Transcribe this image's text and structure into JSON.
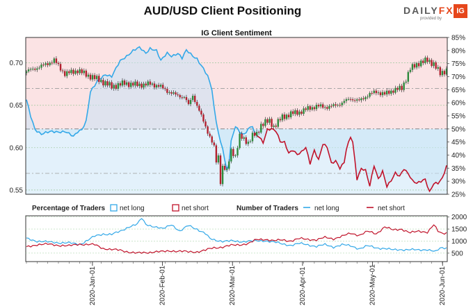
{
  "title": "AUD/USD Client Positioning",
  "logo": {
    "brand_a": "DAILY",
    "brand_b": "FX",
    "tagline": "provided by",
    "badge": "IG"
  },
  "chart_data": [
    {
      "type": "line",
      "title": "IG Client Sentiment",
      "subtype": "candlestick + net long/short percentage",
      "left_axis": {
        "ticks": [
          "0.70",
          "0.65",
          "0.60",
          "0.55"
        ],
        "values": [
          0.7,
          0.65,
          0.6,
          0.55
        ],
        "range": [
          0.545,
          0.73
        ]
      },
      "right_axis": {
        "ticks": [
          "85%",
          "80%",
          "75%",
          "70%",
          "65%",
          "60%",
          "55%",
          "50%",
          "45%",
          "40%",
          "35%",
          "30%",
          "25%"
        ],
        "range": [
          25,
          85
        ]
      },
      "reference_lines": [
        {
          "value": 50,
          "unit": "%"
        },
        {
          "value": 65.5,
          "unit": "%"
        },
        {
          "value": 33,
          "unit": "%"
        }
      ],
      "series": [
        {
          "name": "net long",
          "color": "#33a8e8",
          "anchors": [
            [
              0,
              61
            ],
            [
              2,
              55
            ],
            [
              4,
              50
            ],
            [
              7,
              48
            ],
            [
              12,
              49
            ],
            [
              18,
              49
            ],
            [
              20,
              48
            ],
            [
              22,
              47
            ],
            [
              24,
              49
            ],
            [
              26,
              50
            ],
            [
              28,
              53
            ],
            [
              30,
              64
            ],
            [
              34,
              69
            ],
            [
              37,
              71
            ],
            [
              40,
              70
            ],
            [
              42,
              73
            ],
            [
              44,
              76
            ],
            [
              47,
              78
            ],
            [
              50,
              80
            ],
            [
              53,
              81
            ],
            [
              56,
              79
            ],
            [
              58,
              81
            ],
            [
              61,
              80
            ],
            [
              63,
              76
            ],
            [
              66,
              79
            ],
            [
              68,
              78
            ],
            [
              71,
              79
            ],
            [
              73,
              77
            ],
            [
              75,
              80
            ],
            [
              78,
              78
            ],
            [
              80,
              77
            ],
            [
              83,
              73
            ],
            [
              85,
              70
            ],
            [
              87,
              65
            ],
            [
              88,
              58
            ],
            [
              89,
              53
            ],
            [
              90,
              49
            ],
            [
              91,
              45
            ],
            [
              92,
              43
            ],
            [
              93,
              38
            ],
            [
              94,
              34
            ],
            [
              95,
              37
            ],
            [
              96,
              45
            ],
            [
              98,
              51
            ],
            [
              100,
              49
            ],
            [
              102,
              48
            ],
            [
              104,
              50
            ],
            [
              106,
              51
            ],
            [
              107,
              48
            ]
          ]
        },
        {
          "name": "net short",
          "color": "#c0122a",
          "anchors": [
            [
              107,
              52
            ],
            [
              109,
              47
            ],
            [
              111,
              45
            ],
            [
              113,
              50
            ],
            [
              115,
              50
            ],
            [
              117,
              49
            ],
            [
              119,
              45
            ],
            [
              121,
              45
            ],
            [
              123,
              41
            ],
            [
              125,
              42
            ],
            [
              127,
              40
            ],
            [
              129,
              41
            ],
            [
              131,
              43
            ],
            [
              133,
              37
            ],
            [
              135,
              42
            ],
            [
              137,
              38
            ],
            [
              139,
              44
            ],
            [
              141,
              43
            ],
            [
              143,
              37
            ],
            [
              145,
              38
            ],
            [
              147,
              35
            ],
            [
              149,
              37
            ],
            [
              150,
              42
            ],
            [
              152,
              47
            ],
            [
              153,
              45
            ],
            [
              154,
              38
            ],
            [
              155,
              31
            ],
            [
              157,
              35
            ],
            [
              159,
              34
            ],
            [
              161,
              28
            ],
            [
              163,
              36
            ],
            [
              165,
              31
            ],
            [
              167,
              34
            ],
            [
              169,
              28
            ],
            [
              171,
              30
            ],
            [
              173,
              33
            ],
            [
              175,
              32
            ],
            [
              177,
              35
            ],
            [
              179,
              33
            ],
            [
              181,
              30
            ],
            [
              183,
              29
            ],
            [
              185,
              30
            ],
            [
              187,
              31
            ],
            [
              189,
              26
            ],
            [
              191,
              29
            ],
            [
              193,
              29
            ],
            [
              195,
              31
            ],
            [
              197,
              36
            ]
          ]
        }
      ],
      "price_path": [
        [
          0,
          0.69
        ],
        [
          8,
          0.697
        ],
        [
          13,
          0.703
        ],
        [
          18,
          0.687
        ],
        [
          24,
          0.691
        ],
        [
          30,
          0.684
        ],
        [
          34,
          0.68
        ],
        [
          40,
          0.672
        ],
        [
          46,
          0.676
        ],
        [
          52,
          0.674
        ],
        [
          58,
          0.675
        ],
        [
          62,
          0.673
        ],
        [
          66,
          0.667
        ],
        [
          70,
          0.662
        ],
        [
          74,
          0.66
        ],
        [
          76,
          0.65
        ],
        [
          78,
          0.662
        ],
        [
          82,
          0.637
        ],
        [
          84,
          0.625
        ],
        [
          86,
          0.613
        ],
        [
          88,
          0.6
        ],
        [
          89,
          0.583
        ],
        [
          90,
          0.59
        ],
        [
          91,
          0.56
        ],
        [
          92,
          0.578
        ],
        [
          94,
          0.572
        ],
        [
          96,
          0.597
        ],
        [
          98,
          0.59
        ],
        [
          100,
          0.613
        ],
        [
          102,
          0.61
        ],
        [
          104,
          0.606
        ],
        [
          106,
          0.614
        ],
        [
          108,
          0.616
        ],
        [
          110,
          0.627
        ],
        [
          112,
          0.63
        ],
        [
          114,
          0.631
        ],
        [
          116,
          0.625
        ],
        [
          120,
          0.636
        ],
        [
          124,
          0.64
        ],
        [
          128,
          0.642
        ],
        [
          132,
          0.646
        ],
        [
          136,
          0.649
        ],
        [
          140,
          0.648
        ],
        [
          144,
          0.649
        ],
        [
          148,
          0.653
        ],
        [
          152,
          0.658
        ],
        [
          156,
          0.655
        ],
        [
          160,
          0.662
        ],
        [
          164,
          0.666
        ],
        [
          168,
          0.663
        ],
        [
          172,
          0.668
        ],
        [
          176,
          0.67
        ],
        [
          180,
          0.693
        ],
        [
          184,
          0.7
        ],
        [
          188,
          0.703
        ],
        [
          191,
          0.699
        ],
        [
          194,
          0.687
        ],
        [
          197,
          0.692
        ]
      ]
    },
    {
      "type": "line",
      "title": "Number of Traders",
      "y_ticks": [
        "2000",
        "1500",
        "1000",
        "500"
      ],
      "y_values": [
        2000,
        1500,
        1000,
        500
      ],
      "range": [
        150,
        2050
      ],
      "series": [
        {
          "name": "net long",
          "color": "#33a8e8",
          "anchors": [
            [
              0,
              1110
            ],
            [
              5,
              1000
            ],
            [
              10,
              960
            ],
            [
              15,
              940
            ],
            [
              20,
              920
            ],
            [
              25,
              870
            ],
            [
              28,
              1000
            ],
            [
              32,
              1200
            ],
            [
              36,
              1300
            ],
            [
              40,
              1280
            ],
            [
              44,
              1400
            ],
            [
              48,
              1600
            ],
            [
              52,
              1700
            ],
            [
              54,
              1950
            ],
            [
              56,
              1700
            ],
            [
              60,
              1600
            ],
            [
              64,
              1500
            ],
            [
              68,
              1700
            ],
            [
              72,
              1400
            ],
            [
              76,
              1650
            ],
            [
              80,
              1500
            ],
            [
              84,
              1300
            ],
            [
              86,
              1100
            ],
            [
              88,
              1050
            ],
            [
              92,
              1000
            ],
            [
              96,
              1000
            ],
            [
              100,
              980
            ],
            [
              104,
              1000
            ],
            [
              108,
              1000
            ],
            [
              112,
              1020
            ],
            [
              116,
              960
            ],
            [
              120,
              880
            ],
            [
              124,
              830
            ],
            [
              128,
              900
            ],
            [
              132,
              850
            ],
            [
              136,
              780
            ],
            [
              140,
              850
            ],
            [
              144,
              760
            ],
            [
              148,
              850
            ],
            [
              152,
              800
            ],
            [
              156,
              690
            ],
            [
              160,
              800
            ],
            [
              164,
              720
            ],
            [
              168,
              700
            ],
            [
              172,
              630
            ],
            [
              176,
              650
            ],
            [
              180,
              650
            ],
            [
              184,
              620
            ],
            [
              188,
              660
            ],
            [
              192,
              560
            ],
            [
              194,
              700
            ],
            [
              197,
              720
            ]
          ]
        },
        {
          "name": "net short",
          "color": "#c0122a",
          "anchors": [
            [
              0,
              750
            ],
            [
              5,
              860
            ],
            [
              10,
              870
            ],
            [
              15,
              830
            ],
            [
              20,
              800
            ],
            [
              25,
              880
            ],
            [
              28,
              860
            ],
            [
              32,
              850
            ],
            [
              36,
              700
            ],
            [
              40,
              650
            ],
            [
              44,
              620
            ],
            [
              48,
              550
            ],
            [
              52,
              500
            ],
            [
              56,
              520
            ],
            [
              60,
              560
            ],
            [
              64,
              560
            ],
            [
              68,
              600
            ],
            [
              72,
              580
            ],
            [
              76,
              550
            ],
            [
              80,
              560
            ],
            [
              84,
              620
            ],
            [
              86,
              680
            ],
            [
              88,
              720
            ],
            [
              92,
              760
            ],
            [
              96,
              820
            ],
            [
              100,
              850
            ],
            [
              104,
              900
            ],
            [
              108,
              1060
            ],
            [
              112,
              1080
            ],
            [
              116,
              1010
            ],
            [
              120,
              1050
            ],
            [
              124,
              1010
            ],
            [
              128,
              1100
            ],
            [
              132,
              1080
            ],
            [
              136,
              1050
            ],
            [
              140,
              1150
            ],
            [
              144,
              1100
            ],
            [
              148,
              1200
            ],
            [
              152,
              1320
            ],
            [
              156,
              1250
            ],
            [
              160,
              1400
            ],
            [
              164,
              1300
            ],
            [
              168,
              1600
            ],
            [
              172,
              1450
            ],
            [
              176,
              1500
            ],
            [
              180,
              1350
            ],
            [
              184,
              1400
            ],
            [
              188,
              1380
            ],
            [
              191,
              1680
            ],
            [
              193,
              1400
            ],
            [
              195,
              1300
            ],
            [
              197,
              1350
            ]
          ]
        }
      ]
    }
  ],
  "legend": {
    "percentage_label": "Percentage of Traders",
    "net_long": "net long",
    "net_short": "net short",
    "number_label": "Number of Traders"
  },
  "x_axis": {
    "labels": [
      "2020-Jan-01",
      "2020-Feb-01",
      "2020-Mar-01",
      "2020-Apr-01",
      "2020-May-01",
      "2020-Jun-01"
    ],
    "positions": [
      33,
      68,
      103,
      138,
      173,
      208
    ]
  }
}
